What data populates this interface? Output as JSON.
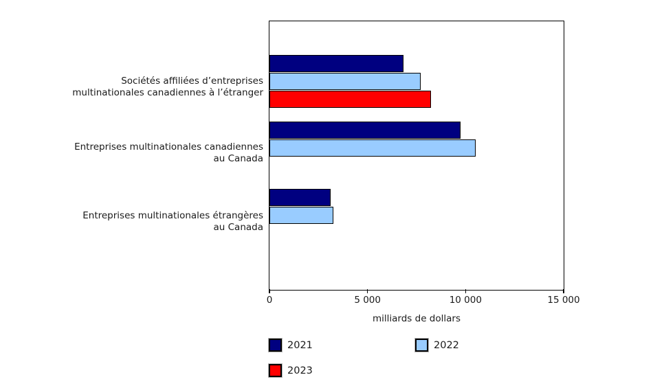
{
  "chart_data": {
    "type": "bar",
    "orientation": "horizontal",
    "title": "",
    "categories": [
      "Sociétés affiliées d’entreprises multinationales canadiennes à l’étranger",
      "Entreprises multinationales canadiennes au Canada",
      "Entreprises multinationales étrangères au Canada"
    ],
    "category_lines": [
      [
        "Sociétés affiliées d’entreprises",
        "multinationales canadiennes à l’étranger"
      ],
      [
        "Entreprises multinationales canadiennes",
        "au Canada"
      ],
      [
        "Entreprises multinationales étrangères",
        "au Canada"
      ]
    ],
    "series": [
      {
        "name": "2021",
        "color": "#000080",
        "values": [
          6850,
          9750,
          3130
        ]
      },
      {
        "name": "2022",
        "color": "#99CCFF",
        "values": [
          7700,
          10500,
          3270
        ]
      },
      {
        "name": "2023",
        "color": "#FF0000",
        "values": [
          8250,
          null,
          null
        ]
      }
    ],
    "xlabel": "milliards de dollars",
    "ylabel": "",
    "xlim": [
      0,
      15000
    ],
    "xticks": [
      0,
      5000,
      10000,
      15000
    ],
    "xtick_labels": [
      "0",
      "5 000",
      "10 000",
      "15 000"
    ],
    "grid": false,
    "legend_position": "bottom"
  },
  "legend": {
    "items": [
      {
        "label": "2021",
        "color": "#000080"
      },
      {
        "label": "2022",
        "color": "#99CCFF"
      },
      {
        "label": "2023",
        "color": "#FF0000"
      }
    ]
  },
  "colors": {
    "plot_border": "#000000",
    "bar_border": "#000000",
    "text": "#1a1a1a",
    "background": "#ffffff"
  }
}
